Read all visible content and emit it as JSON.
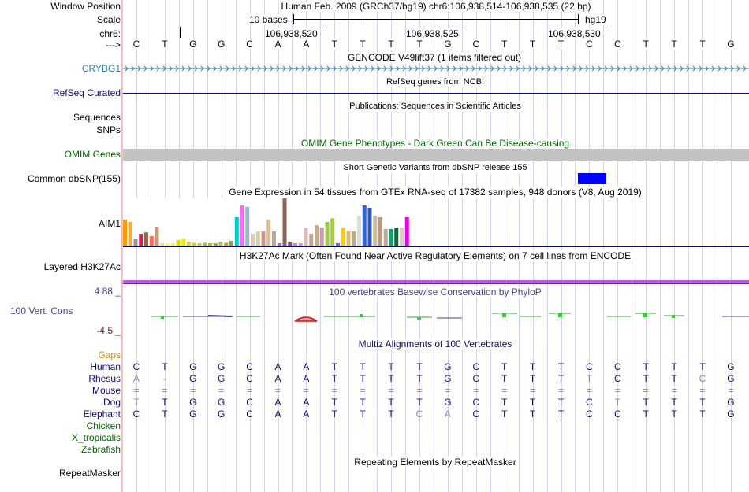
{
  "header": {
    "labels": {
      "window_position": "Window Position",
      "scale": "Scale",
      "chrom": "chr6:",
      "arrow": "--->"
    },
    "title": "Human Feb. 2009 (GRCh37/hg19)   chr6:106,938,514-106,938,535 (22 bp)",
    "scale_text": "10 bases",
    "assembly": "hg19",
    "pos_ticks": [
      "106,938,520",
      "106,938,525",
      "106,938,530"
    ]
  },
  "reference_bases": [
    "C",
    "T",
    "G",
    "G",
    "C",
    "A",
    "A",
    "T",
    "T",
    "T",
    "T",
    "G",
    "C",
    "T",
    "T",
    "T",
    "C",
    "C",
    "T",
    "T",
    "T",
    "G"
  ],
  "tracks": {
    "gencode": {
      "title": "GENCODE V49lift37 (1 items filtered out)",
      "gene": "CRYBG1"
    },
    "refseq": {
      "title": "RefSeq genes from NCBI",
      "label": "RefSeq Curated"
    },
    "publications": {
      "title": "Publications: Sequences in Scientific Articles",
      "label1": "Sequences",
      "label2": "SNPs"
    },
    "omim": {
      "title": "OMIM Gene Phenotypes - Dark Green Can Be Disease-causing",
      "label": "OMIM Genes"
    },
    "dbsnp": {
      "title": "Short Genetic Variants from dbSNP release 155",
      "label": "Common dbSNP(155)"
    },
    "gtex": {
      "title": "Gene Expression in 54 tissues from GTEx RNA-seq of 17382 samples, 948 donors (V8, Aug 2019)",
      "label": "AIM1",
      "tissue_levels": [
        0.55,
        0.5,
        0.15,
        0.25,
        0.28,
        0.2,
        0.4,
        0.05,
        0.05,
        0.05,
        0.12,
        0.15,
        0.08,
        0.06,
        0.05,
        0.06,
        0.05,
        0.05,
        0.08,
        0.06,
        0.1,
        0.6,
        0.85,
        0.82,
        0.25,
        0.3,
        0.3,
        0.55,
        0.3,
        0.05,
        1.0,
        0.08,
        0.05,
        0.05,
        0.38,
        0.25,
        0.43,
        0.38,
        0.5,
        0.58,
        0.05,
        0.38,
        0.3,
        0.3,
        0.63,
        0.85,
        0.8,
        0.63,
        0.6,
        0.35,
        0.35,
        0.38,
        0.38,
        0.6
      ],
      "tissue_colors": [
        "#ff9900",
        "#ffaa33",
        "#999999",
        "#cc2255",
        "#996633",
        "#ff6666",
        "#cc9977",
        "#eedd99",
        "#ffff33",
        "#ffff00",
        "#dddd00",
        "#eeee00",
        "#dddd22",
        "#ddcc33",
        "#cccc33",
        "#bbbb44",
        "#bbbb00",
        "#aaaa22",
        "#bbbb55",
        "#aaaa55",
        "#999944",
        "#00cccc",
        "#ff66ff",
        "#99bbcc",
        "#ddccbb",
        "#ddccaa",
        "#cc9988",
        "#ddbb99",
        "#bbaa99",
        "#aa66cc",
        "#886655",
        "#994488",
        "#aa99bb",
        "#cc99cc",
        "#ddbbbb",
        "#bbaa99",
        "#ccaa88",
        "#cc99aa",
        "#99cc44",
        "#aacc33",
        "#6666ff",
        "#ffcc00",
        "#ddbb77",
        "#bbaa88",
        "#dddddd",
        "#3366cc",
        "#3355bb",
        "#ccbb99",
        "#bb9988",
        "#bbaa99",
        "#00aa66",
        "#116633",
        "#ddccbb",
        "#ee00ee"
      ]
    },
    "h3k27ac": {
      "title": "H3K27Ac Mark (Often Found Near Active Regulatory Elements) on 7 cell lines from ENCODE",
      "label": "Layered H3K27Ac"
    },
    "phylop": {
      "title": "100 vertebrates Basewise Conservation by PhyloP",
      "label": "100 Vert. Cons",
      "max": "4.88 _",
      "min": "-4.5 _"
    },
    "multiz": {
      "title": "Multiz Alignments of 100 Vertebrates",
      "gaps_label": "Gaps",
      "species": [
        {
          "name": "Human",
          "bases": [
            "C",
            "T",
            "G",
            "G",
            "C",
            "A",
            "A",
            "T",
            "T",
            "T",
            "T",
            "G",
            "C",
            "T",
            "T",
            "T",
            "C",
            "C",
            "T",
            "T",
            "T",
            "G"
          ]
        },
        {
          "name": "Rhesus",
          "bases": [
            "A",
            "-",
            "G",
            "G",
            "C",
            "A",
            "A",
            "T",
            "T",
            "T",
            "T",
            "G",
            "C",
            "T",
            "T",
            "T",
            "T",
            "C",
            "T",
            "T",
            "C",
            "G"
          ]
        },
        {
          "name": "Mouse",
          "bases": [
            "=",
            "=",
            "=",
            "=",
            "=",
            "=",
            "=",
            "=",
            "=",
            "=",
            "=",
            "=",
            "=",
            "=",
            "=",
            "=",
            "=",
            "=",
            "=",
            "=",
            "=",
            "="
          ]
        },
        {
          "name": "Dog",
          "bases": [
            "T",
            "T",
            "G",
            "G",
            "C",
            "A",
            "A",
            "T",
            "T",
            "T",
            "T",
            "G",
            "C",
            "T",
            "T",
            "T",
            "C",
            "T",
            "T",
            "T",
            "T",
            "G"
          ]
        },
        {
          "name": "Elephant",
          "bases": [
            "C",
            "T",
            "G",
            "G",
            "C",
            "A",
            "A",
            "T",
            "T",
            "T",
            "C",
            "A",
            "C",
            "T",
            "T",
            "T",
            "C",
            "C",
            "T",
            "T",
            "T",
            "G"
          ]
        },
        {
          "name": "Chicken",
          "bases": []
        },
        {
          "name": "X_tropicalis",
          "bases": []
        },
        {
          "name": "Zebrafish",
          "bases": []
        }
      ]
    },
    "repeatmasker": {
      "title": "Repeating Elements by RepeatMasker",
      "label": "RepeatMasker"
    }
  },
  "colors": {
    "gencode": "#2f7fa8",
    "refseq": "#0c0c78",
    "omim": "#006400",
    "dbsnp_box": "#0000ff",
    "h3k27ac": "#b55fe0",
    "phylop": "#43438f",
    "phylop_min": "#8b1a1a",
    "gaps": "#e08b00",
    "multiz_title": "#101060",
    "species_mammal": "#0c0c78",
    "species_other": "#006400",
    "mismatch": "#8888aa"
  }
}
